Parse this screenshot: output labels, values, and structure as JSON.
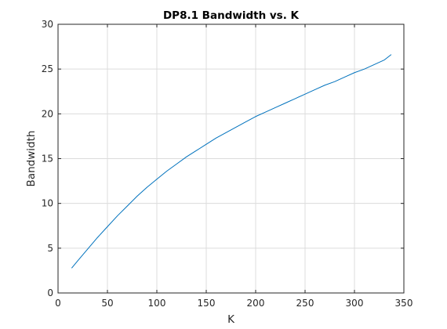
{
  "chart_data": {
    "type": "line",
    "title": "DP8.1 Bandwidth vs. K",
    "xlabel": "K",
    "ylabel": "Bandwidth",
    "xlim": [
      0,
      350
    ],
    "ylim": [
      0,
      30
    ],
    "xticks": [
      "0",
      "50",
      "100",
      "150",
      "200",
      "250",
      "300",
      "350"
    ],
    "yticks": [
      "0",
      "5",
      "10",
      "15",
      "20",
      "25",
      "30"
    ],
    "grid": true,
    "legend": "none",
    "series": [
      {
        "color": "#0072bd",
        "x": [
          14,
          20,
          30,
          40,
          50,
          60,
          70,
          80,
          90,
          100,
          110,
          120,
          130,
          140,
          150,
          160,
          170,
          180,
          190,
          200,
          210,
          220,
          230,
          240,
          250,
          260,
          270,
          280,
          290,
          300,
          310,
          320,
          330,
          337
        ],
        "y": [
          2.8,
          3.6,
          4.9,
          6.2,
          7.4,
          8.6,
          9.7,
          10.8,
          11.8,
          12.7,
          13.6,
          14.4,
          15.2,
          15.9,
          16.6,
          17.3,
          17.9,
          18.5,
          19.1,
          19.7,
          20.2,
          20.7,
          21.2,
          21.7,
          22.2,
          22.7,
          23.2,
          23.6,
          24.1,
          24.6,
          25.0,
          25.5,
          26.0,
          26.6
        ]
      }
    ]
  }
}
